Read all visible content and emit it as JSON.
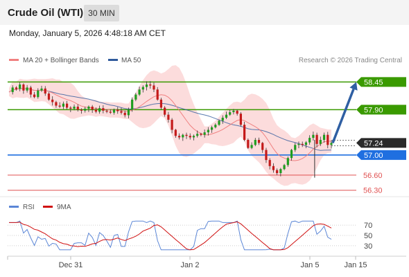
{
  "header": {
    "title": "Crude Oil (WTI)",
    "timeframe": "30 MIN",
    "datetime": "Monday, January 5, 2026 4:48:18 AM CET"
  },
  "legend": {
    "ma20_bb": "MA 20 + Bollinger Bands",
    "ma50": "MA 50",
    "credit": "Research © 2026 Trading Central"
  },
  "rsi_legend": {
    "rsi": "RSI",
    "ma9": "9MA"
  },
  "colors": {
    "green_level": "#3a9a00",
    "blue_level": "#1f6fe0",
    "red_level": "#e05050",
    "ma50": "#2f5a9c",
    "bollinger": "#fbd6d6",
    "candle_up": "#1f9d1f",
    "candle_down": "#c41a1a",
    "current": "#2a2a2a",
    "rsi": "#5b86d6",
    "rsi_ma": "#d01010",
    "arrow": "#2f5fa3"
  },
  "chart_data": {
    "type": "candlestick",
    "y_range": [
      56.2,
      58.62
    ],
    "levels": [
      {
        "name": "resistance-2",
        "value": 58.45,
        "label": "58.45",
        "kind": "resistance"
      },
      {
        "name": "resistance-1",
        "value": 57.9,
        "label": "57.90",
        "kind": "resistance"
      },
      {
        "name": "pivot",
        "value": 57.0,
        "label": "57.00",
        "kind": "pivot"
      },
      {
        "name": "support-1",
        "value": 56.6,
        "label": "56.60",
        "kind": "support"
      },
      {
        "name": "support-2",
        "value": 56.3,
        "label": "56.30",
        "kind": "support"
      }
    ],
    "current_price": {
      "value": 57.24,
      "label": "57.24"
    },
    "x_ticks": [
      "Dec 31",
      "Jan 2",
      "Jan 5",
      "Jan 15"
    ],
    "price_path": [
      58.25,
      58.34,
      58.31,
      58.4,
      58.28,
      58.34,
      58.2,
      58.15,
      58.28,
      58.32,
      58.22,
      58.1,
      58.05,
      57.98,
      57.96,
      58.02,
      57.94,
      57.92,
      57.96,
      57.9,
      57.88,
      57.92,
      57.96,
      57.9,
      57.86,
      57.93,
      57.88,
      57.86,
      57.84,
      57.9,
      57.87,
      57.84,
      57.79,
      57.9,
      58.1,
      58.2,
      58.3,
      58.35,
      58.4,
      58.38,
      58.3,
      58.1,
      57.94,
      57.8,
      57.7,
      57.5,
      57.38,
      57.35,
      57.4,
      57.38,
      57.35,
      57.38,
      57.42,
      57.4,
      57.45,
      57.5,
      57.55,
      57.6,
      57.68,
      57.74,
      57.8,
      57.85,
      57.88,
      57.82,
      57.6,
      57.3,
      57.14,
      57.2,
      57.3,
      57.24,
      57.1,
      56.9,
      56.78,
      56.7,
      56.64,
      56.72,
      56.8,
      56.94,
      57.1,
      57.2,
      57.22,
      57.2,
      57.25,
      57.34,
      57.4,
      57.22,
      57.3,
      57.4,
      57.2,
      57.24
    ],
    "moving_averages": [
      {
        "name": "MA 50",
        "color": "#2f5a9c"
      },
      {
        "name": "MA 20 + Bollinger Bands",
        "color": "#f08080"
      }
    ],
    "forecast_arrow": {
      "from": 57.24,
      "to": 58.45
    },
    "rsi": {
      "levels": [
        70,
        50,
        30
      ],
      "range": [
        15,
        85
      ]
    }
  }
}
